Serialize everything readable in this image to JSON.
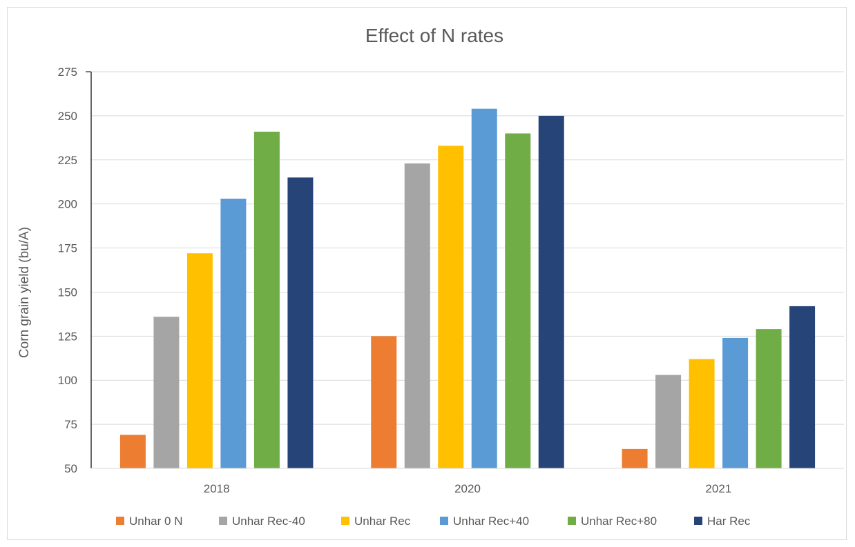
{
  "chart_data": {
    "type": "bar",
    "title": "Effect of N rates",
    "xlabel": "",
    "ylabel": "Corn grain yield (bu/A)",
    "ylim": [
      50,
      275
    ],
    "yticks": [
      50,
      75,
      100,
      125,
      150,
      175,
      200,
      225,
      250,
      275
    ],
    "grid": true,
    "legend_position": "bottom",
    "categories": [
      "2018",
      "2020",
      "2021"
    ],
    "series": [
      {
        "name": "Unhar 0 N",
        "color": "#ED7D31",
        "values": [
          69,
          125,
          61
        ]
      },
      {
        "name": "Unhar Rec-40",
        "color": "#A5A5A5",
        "values": [
          136,
          223,
          103
        ]
      },
      {
        "name": "Unhar Rec",
        "color": "#FFC000",
        "values": [
          172,
          233,
          112
        ]
      },
      {
        "name": "Unhar Rec+40",
        "color": "#5B9BD5",
        "values": [
          203,
          254,
          124
        ]
      },
      {
        "name": "Unhar Rec+80",
        "color": "#70AD47",
        "values": [
          241,
          240,
          129
        ]
      },
      {
        "name": "Har Rec",
        "color": "#264478",
        "values": [
          215,
          250,
          142
        ]
      }
    ]
  }
}
